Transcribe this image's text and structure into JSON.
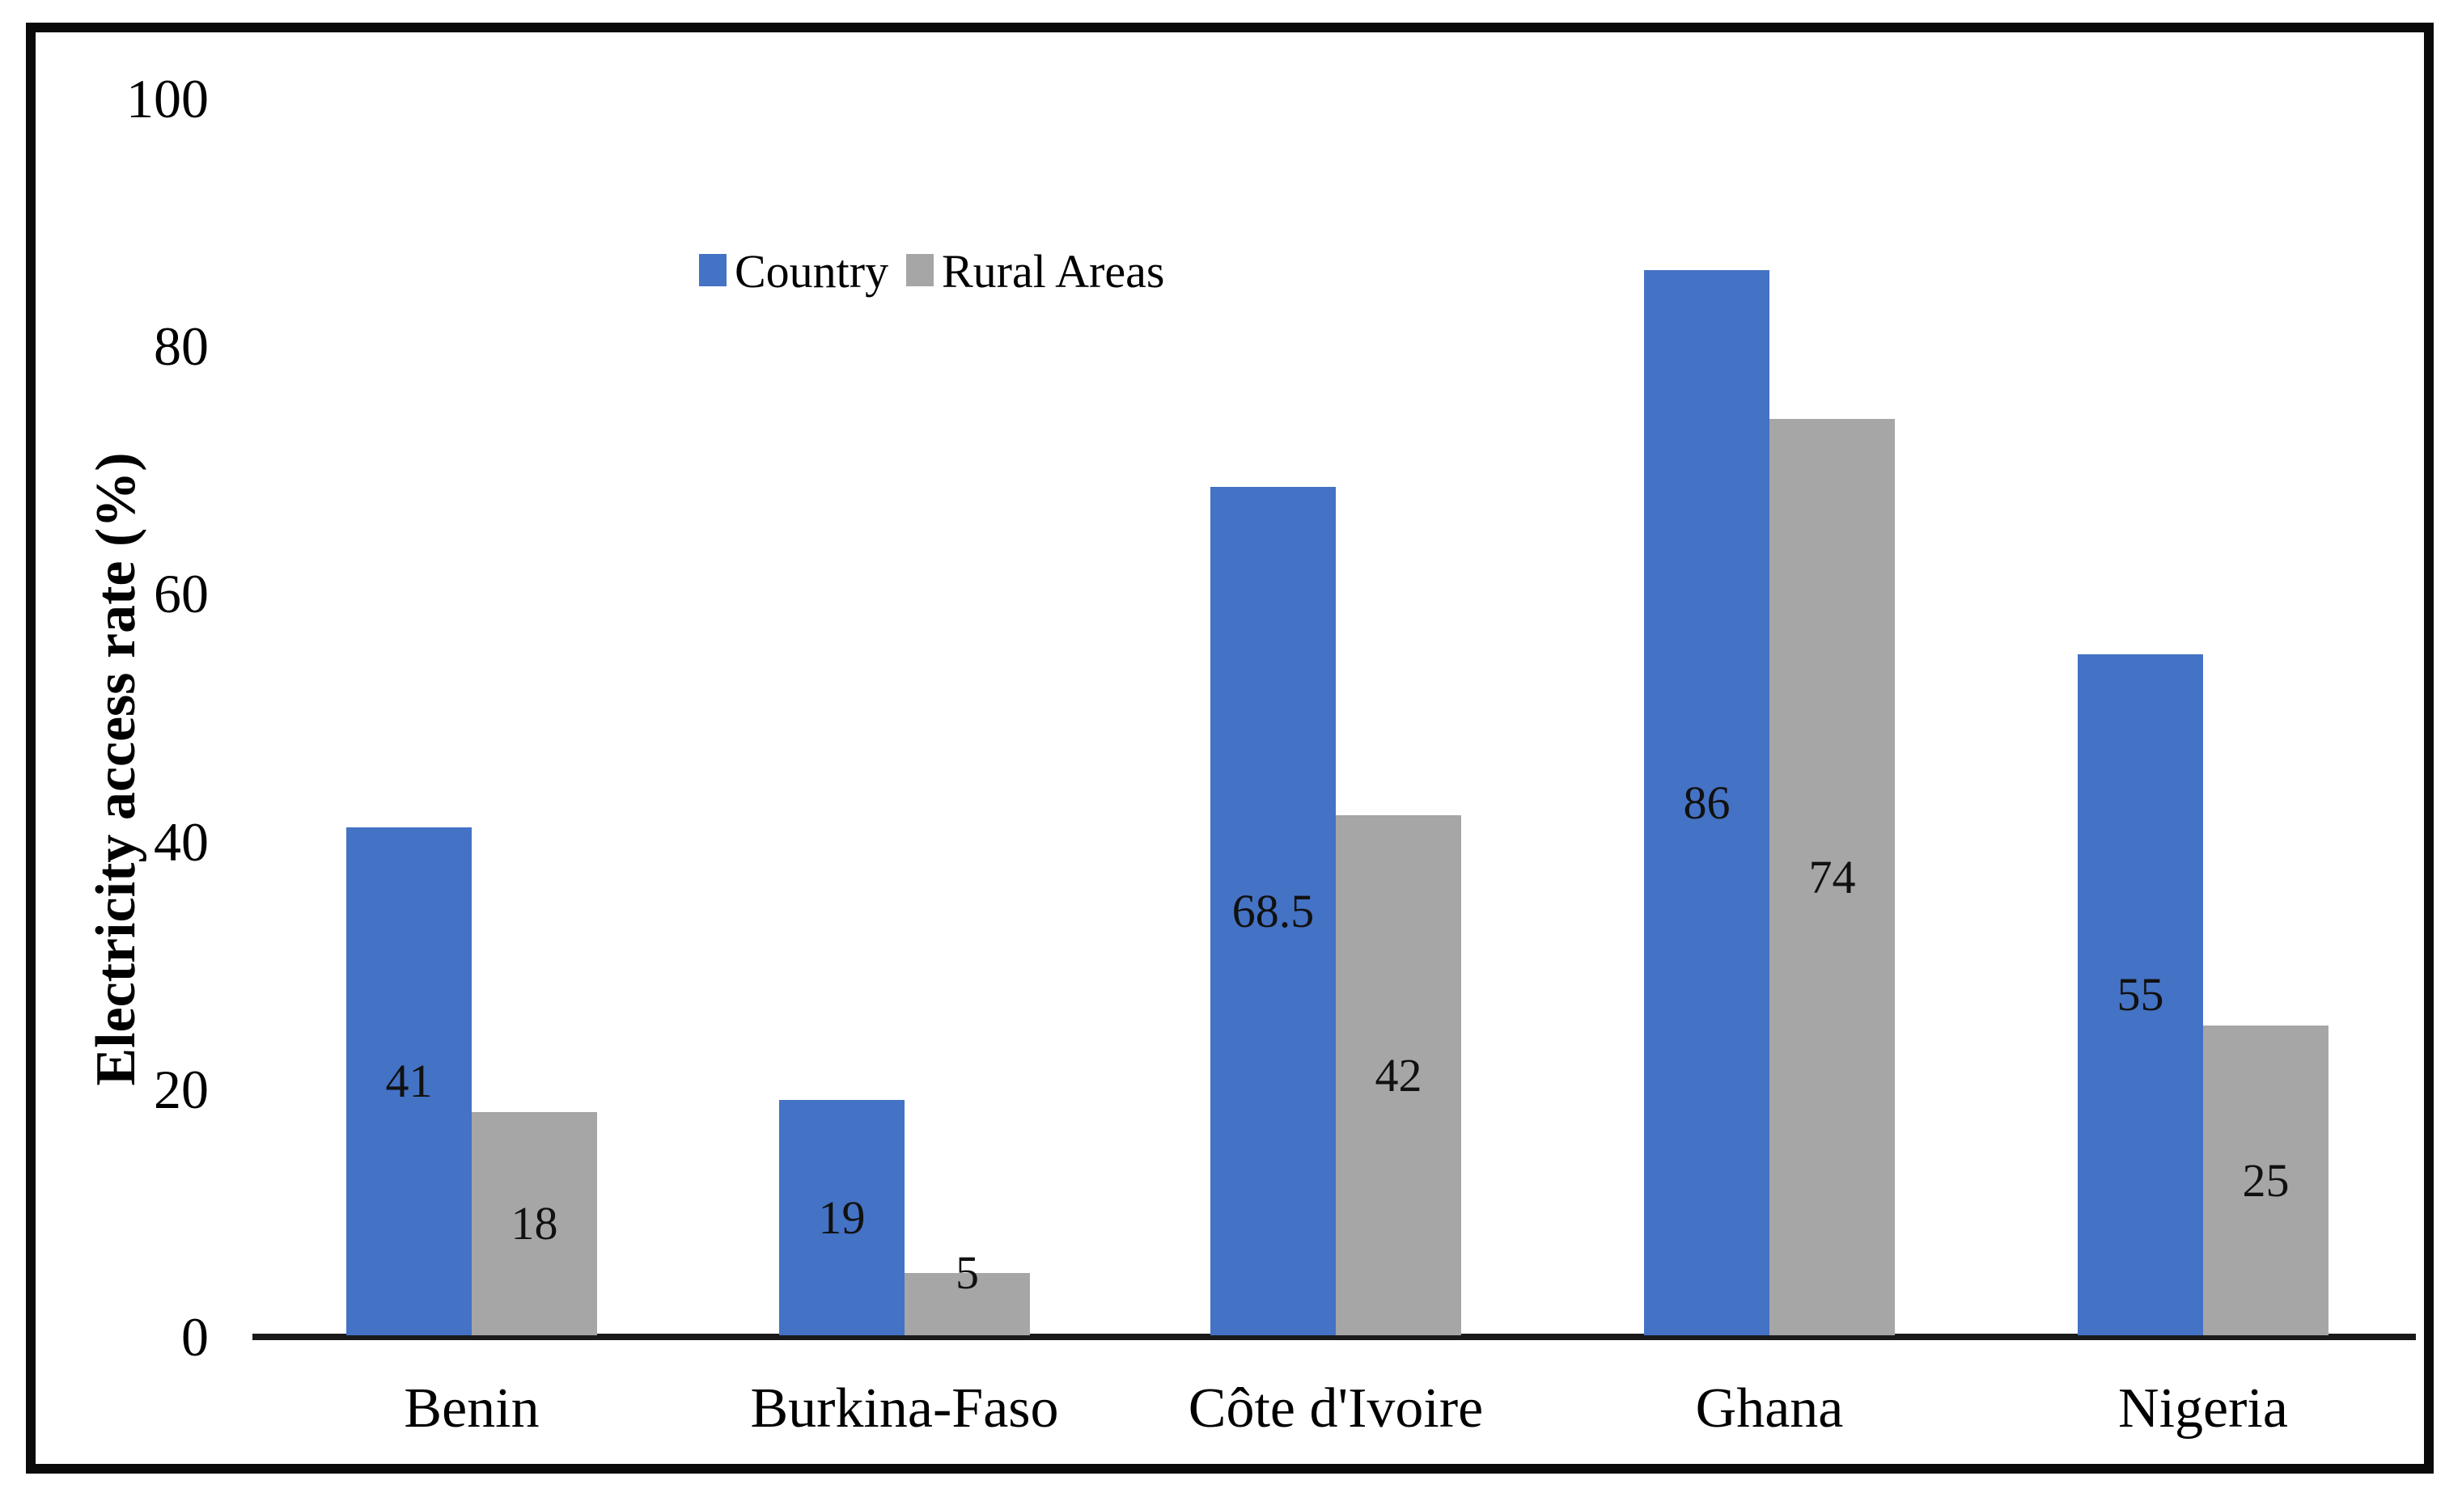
{
  "figure": {
    "background": "#ffffff",
    "border_color": "#0a0a0a",
    "text_color": "#000000",
    "data_label_color": "#111111"
  },
  "chart_data": {
    "type": "bar",
    "title": "",
    "xlabel": "",
    "ylabel": "Electricity access rate (%)",
    "ylim": [
      0,
      100
    ],
    "yticks": [
      0,
      20,
      40,
      60,
      80,
      100
    ],
    "grid": false,
    "legend_position": "top-center-inside",
    "categories": [
      "Benin",
      "Burkina-Faso",
      "Côte d'Ivoire",
      "Ghana",
      "Nigeria"
    ],
    "series": [
      {
        "name": "Country",
        "color": "#4472C4",
        "values": [
          41,
          19,
          68.5,
          86,
          55
        ]
      },
      {
        "name": "Rural Areas",
        "color": "#A6A6A6",
        "values": [
          18,
          5,
          42,
          74,
          25
        ]
      }
    ],
    "data_labels_shown": true
  }
}
